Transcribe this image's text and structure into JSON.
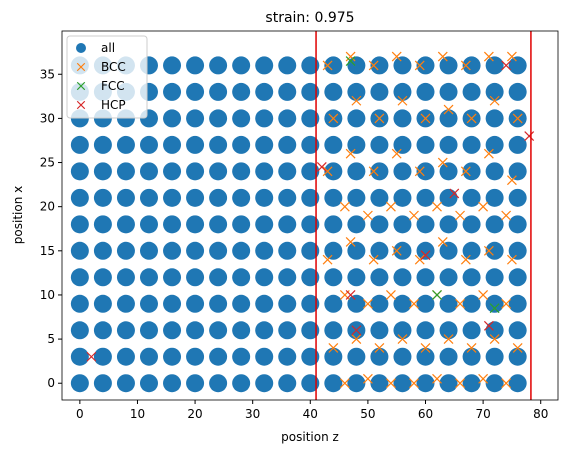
{
  "chart_data": {
    "type": "scatter",
    "title": "strain: 0.975",
    "xlabel": "position z",
    "ylabel": "position x",
    "xlim": [
      -3.1,
      83
    ],
    "ylim": [
      -1.9,
      39.9
    ],
    "xticks": [
      0,
      10,
      20,
      30,
      40,
      50,
      60,
      70,
      80
    ],
    "yticks": [
      0,
      5,
      10,
      15,
      20,
      25,
      30,
      35
    ],
    "legend": "upper left",
    "vlines": {
      "color": "#e00000",
      "values": [
        41,
        78.3
      ]
    },
    "series": [
      {
        "name": "all",
        "marker": "o",
        "color": "#1f77b4",
        "x": [
          0,
          4,
          8,
          12,
          16,
          20,
          24,
          28,
          32,
          36,
          40,
          44,
          48,
          52,
          56,
          60,
          64,
          68,
          72,
          76,
          0,
          4,
          8,
          12,
          16,
          20,
          24,
          28,
          32,
          36,
          40,
          44,
          48,
          52,
          56,
          60,
          64,
          68,
          72,
          76,
          0,
          4,
          8,
          12,
          16,
          20,
          24,
          28,
          32,
          36,
          40,
          44,
          48,
          52,
          56,
          60,
          64,
          68,
          72,
          76,
          0,
          4,
          8,
          12,
          16,
          20,
          24,
          28,
          32,
          36,
          40,
          44,
          48,
          52,
          56,
          60,
          64,
          68,
          72,
          76,
          0,
          4,
          8,
          12,
          16,
          20,
          24,
          28,
          32,
          36,
          40,
          44,
          48,
          52,
          56,
          60,
          64,
          68,
          72,
          76,
          0,
          4,
          8,
          12,
          16,
          20,
          24,
          28,
          32,
          36,
          40,
          44,
          48,
          52,
          56,
          60,
          64,
          68,
          72,
          76,
          0,
          4,
          8,
          12,
          16,
          20,
          24,
          28,
          32,
          36,
          40,
          44,
          48,
          52,
          56,
          60,
          64,
          68,
          72,
          76,
          0,
          4,
          8,
          12,
          16,
          20,
          24,
          28,
          32,
          36,
          40,
          44,
          48,
          52,
          56,
          60,
          64,
          68,
          72,
          76,
          0,
          4,
          8,
          12,
          16,
          20,
          24,
          28,
          32,
          36,
          40,
          44,
          48,
          52,
          56,
          60,
          64,
          68,
          72,
          76,
          0,
          4,
          8,
          12,
          16,
          20,
          24,
          28,
          32,
          36,
          40,
          44,
          48,
          52,
          56,
          60,
          64,
          68,
          72,
          76,
          0,
          4,
          8,
          12,
          16,
          20,
          24,
          28,
          32,
          36,
          40,
          44,
          48,
          52,
          56,
          60,
          64,
          68,
          72,
          76,
          0,
          4,
          8,
          12,
          16,
          20,
          24,
          28,
          32,
          36,
          40,
          44,
          48,
          52,
          56,
          60,
          64,
          68,
          72,
          76,
          0,
          4,
          8,
          12,
          16,
          20,
          24,
          28,
          32,
          36,
          40,
          44,
          48,
          52,
          56,
          60,
          64,
          68,
          72,
          76
        ],
        "y": [
          0,
          0,
          0,
          0,
          0,
          0,
          0,
          0,
          0,
          0,
          0,
          0,
          0,
          0,
          0,
          0,
          0,
          0,
          0,
          0,
          3,
          3,
          3,
          3,
          3,
          3,
          3,
          3,
          3,
          3,
          3,
          3,
          3,
          3,
          3,
          3,
          3,
          3,
          3,
          3,
          6,
          6,
          6,
          6,
          6,
          6,
          6,
          6,
          6,
          6,
          6,
          6,
          6,
          6,
          6,
          6,
          6,
          6,
          6,
          6,
          9,
          9,
          9,
          9,
          9,
          9,
          9,
          9,
          9,
          9,
          9,
          9,
          9,
          9,
          9,
          9,
          9,
          9,
          9,
          9,
          12,
          12,
          12,
          12,
          12,
          12,
          12,
          12,
          12,
          12,
          12,
          12,
          12,
          12,
          12,
          12,
          12,
          12,
          12,
          12,
          15,
          15,
          15,
          15,
          15,
          15,
          15,
          15,
          15,
          15,
          15,
          15,
          15,
          15,
          15,
          15,
          15,
          15,
          15,
          15,
          18,
          18,
          18,
          18,
          18,
          18,
          18,
          18,
          18,
          18,
          18,
          18,
          18,
          18,
          18,
          18,
          18,
          18,
          18,
          18,
          21,
          21,
          21,
          21,
          21,
          21,
          21,
          21,
          21,
          21,
          21,
          21,
          21,
          21,
          21,
          21,
          21,
          21,
          21,
          21,
          24,
          24,
          24,
          24,
          24,
          24,
          24,
          24,
          24,
          24,
          24,
          24,
          24,
          24,
          24,
          24,
          24,
          24,
          24,
          24,
          27,
          27,
          27,
          27,
          27,
          27,
          27,
          27,
          27,
          27,
          27,
          27,
          27,
          27,
          27,
          27,
          27,
          27,
          27,
          27,
          30,
          30,
          30,
          30,
          30,
          30,
          30,
          30,
          30,
          30,
          30,
          30,
          30,
          30,
          30,
          30,
          30,
          30,
          30,
          30,
          33,
          33,
          33,
          33,
          33,
          33,
          33,
          33,
          33,
          33,
          33,
          33,
          33,
          33,
          33,
          33,
          33,
          33,
          33,
          33,
          36,
          36,
          36,
          36,
          36,
          36,
          36,
          36,
          36,
          36,
          36,
          36,
          36,
          36,
          36,
          36,
          36,
          36,
          36,
          36
        ]
      },
      {
        "name": "BCC",
        "marker": "x",
        "color": "#ff7f0e",
        "x": [
          43,
          47,
          51,
          55,
          59,
          63,
          67,
          71,
          75,
          44,
          48,
          52,
          56,
          60,
          64,
          68,
          72,
          76,
          43,
          47,
          51,
          55,
          59,
          63,
          67,
          71,
          75,
          46,
          50,
          54,
          58,
          62,
          66,
          70,
          74,
          43,
          47,
          51,
          55,
          59,
          63,
          67,
          71,
          75,
          46,
          50,
          54,
          58,
          62,
          66,
          70,
          74,
          44,
          48,
          52,
          56,
          60,
          64,
          68,
          72,
          76,
          46,
          50,
          54,
          58,
          62,
          66,
          70,
          74
        ],
        "y": [
          36,
          37,
          36,
          37,
          36,
          37,
          36,
          37,
          37,
          30,
          32,
          30,
          32,
          30,
          31,
          30,
          32,
          30,
          24,
          26,
          24,
          26,
          24,
          25,
          24,
          26,
          23,
          20,
          19,
          20,
          19,
          20,
          19,
          20,
          19,
          14,
          16,
          14,
          15,
          14,
          16,
          14,
          15,
          14,
          10,
          9,
          10,
          9,
          10,
          9,
          10,
          9,
          4,
          5,
          4,
          5,
          4,
          5,
          4,
          5,
          4,
          0,
          0.5,
          0,
          0,
          0.5,
          0,
          0.5,
          0
        ]
      },
      {
        "name": "FCC",
        "marker": "x",
        "color": "#2ca02c",
        "x": [
          47,
          62,
          72
        ],
        "y": [
          36.5,
          10,
          8.5
        ]
      },
      {
        "name": "HCP",
        "marker": "x",
        "color": "#d62728",
        "x": [
          2,
          42,
          65,
          60,
          48,
          74,
          71,
          47,
          78
        ],
        "y": [
          3,
          24.5,
          21.5,
          14.5,
          6,
          36,
          6.5,
          10,
          28
        ]
      }
    ]
  }
}
